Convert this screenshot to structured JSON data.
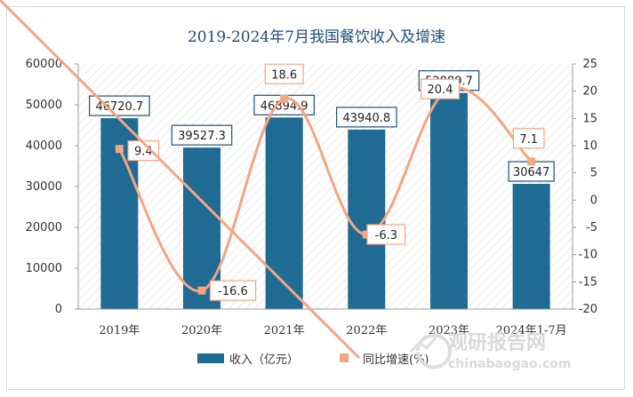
{
  "chart_data": {
    "type": "bar+line",
    "title": "2019-2024年7月我国餐饮收入及增速",
    "categories": [
      "2019年",
      "2020年",
      "2021年",
      "2022年",
      "2023年",
      "2024年1-7月"
    ],
    "series": [
      {
        "name": "收入（亿元）",
        "type": "bar",
        "axis": "left",
        "values": [
          46720.7,
          39527.3,
          46894.9,
          43940.8,
          52889.7,
          30647
        ],
        "labels": [
          "46720.7",
          "39527.3",
          "46894.9",
          "43940.8",
          "52889.7",
          "30647"
        ],
        "color": "#1f6b94"
      },
      {
        "name": "同比增速(%)",
        "type": "line",
        "axis": "right",
        "values": [
          9.4,
          -16.6,
          18.6,
          -6.3,
          20.4,
          7.1
        ],
        "labels": [
          "9.4",
          "-16.6",
          "18.6",
          "-6.3",
          "20.4",
          "7.1"
        ],
        "color": "#f4a582"
      }
    ],
    "y_left": {
      "min": 0,
      "max": 60000,
      "ticks": [
        "0",
        "10000",
        "20000",
        "30000",
        "40000",
        "50000",
        "60000"
      ]
    },
    "y_right": {
      "min": -20,
      "max": 25,
      "ticks": [
        "-20",
        "-15",
        "-10",
        "-5",
        "0",
        "5",
        "10",
        "15",
        "20",
        "25"
      ]
    },
    "grid": false,
    "legend": "bottom"
  },
  "watermark": {
    "brand": "观研报告网",
    "url": "chinabaogao.com"
  }
}
